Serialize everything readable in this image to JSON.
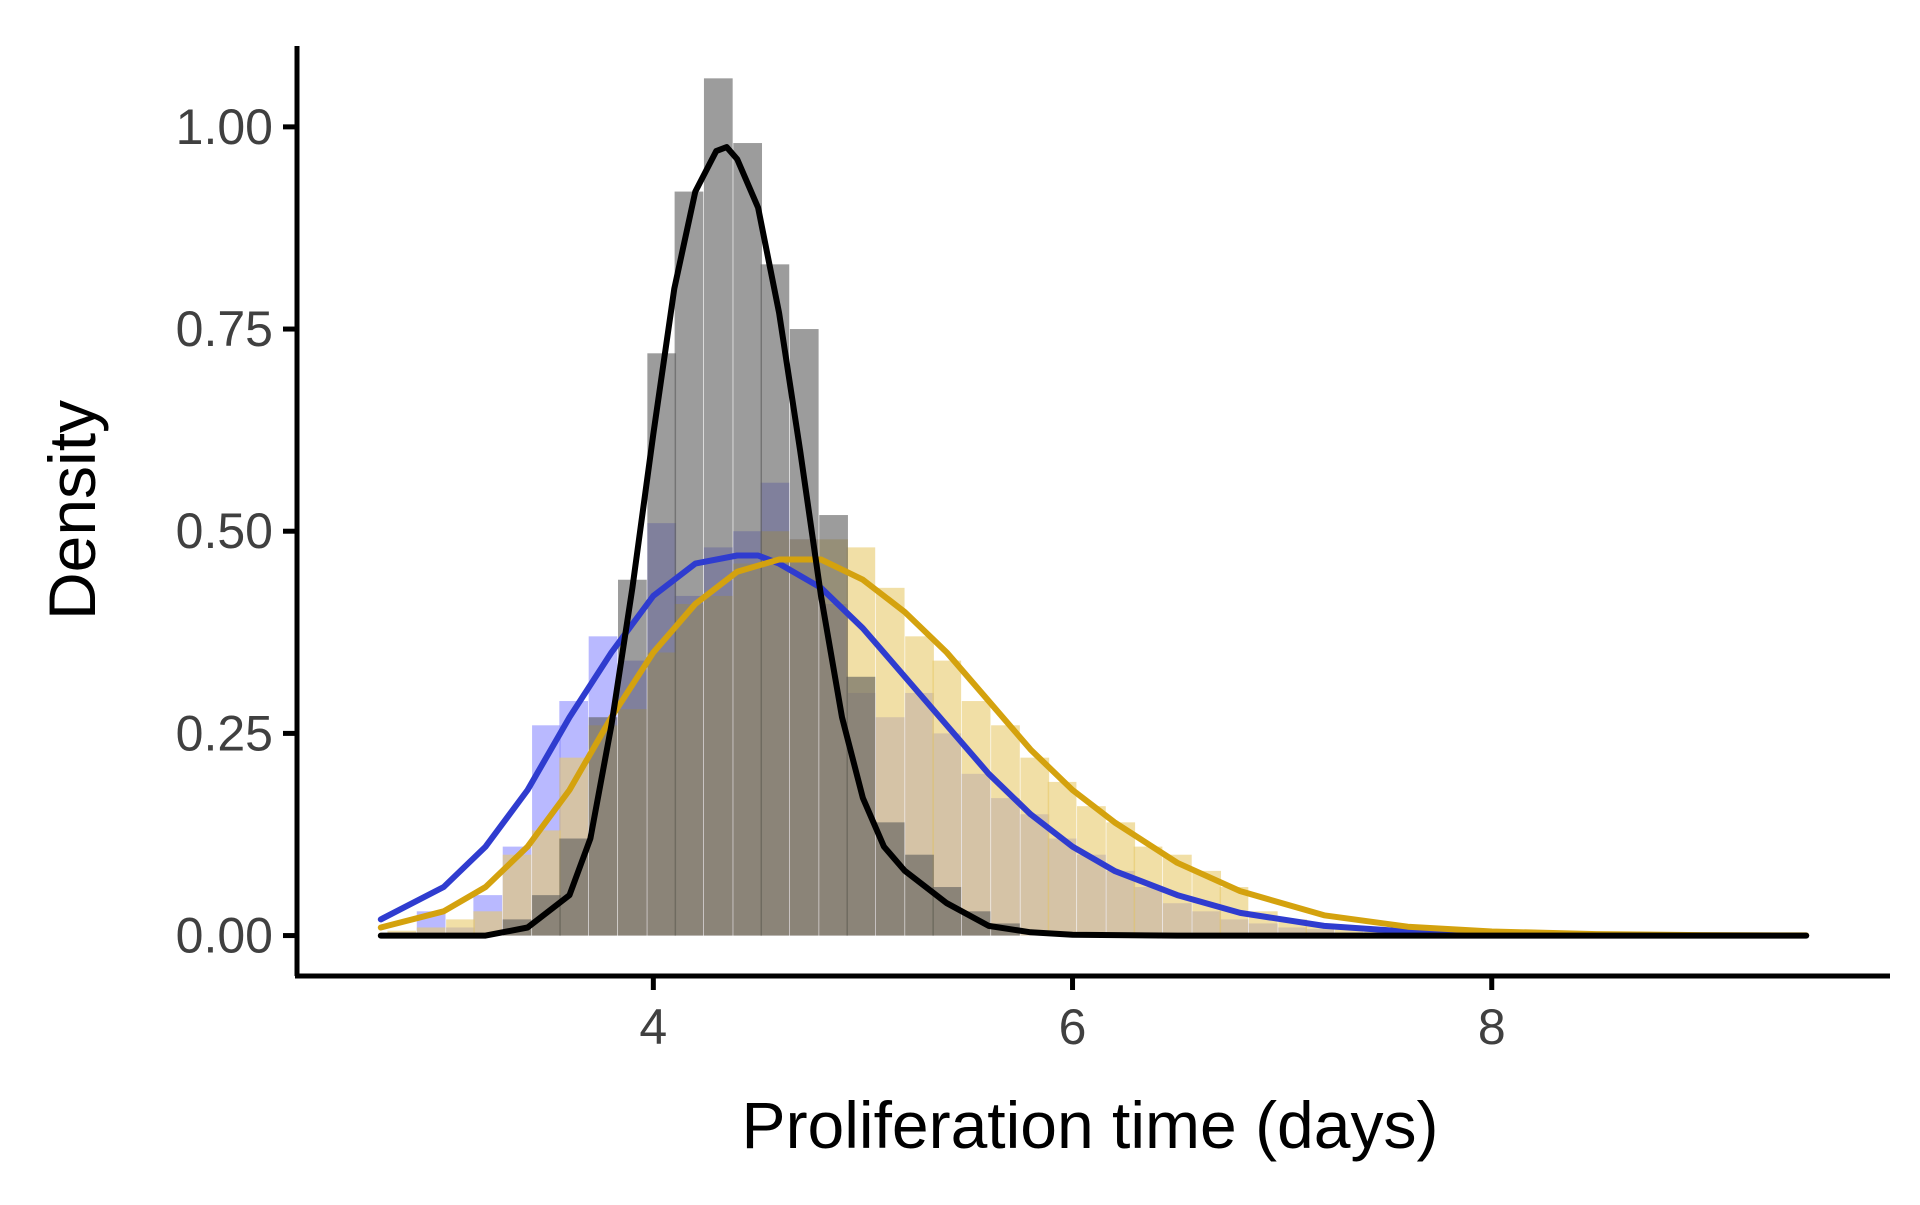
{
  "chart_data": {
    "type": "histogram",
    "title": "",
    "xlabel": "Proliferation time (days)",
    "ylabel": "Density",
    "xlim": [
      2.3,
      9.9
    ],
    "ylim": [
      -0.05,
      1.1
    ],
    "x_ticks": [
      4,
      6,
      8
    ],
    "x_tick_labels": [
      "4",
      "6",
      "8"
    ],
    "y_ticks": [
      0.0,
      0.25,
      0.5,
      0.75,
      1.0
    ],
    "y_tick_labels": [
      "0.00",
      "0.25",
      "0.50",
      "0.75",
      "1.00"
    ],
    "grid": false,
    "legend": "none",
    "bin_width": 0.137,
    "series": [
      {
        "kind": "histogram",
        "color": "#8a8aff",
        "opacity": 0.6,
        "bins": [
          {
            "x": 2.67,
            "y": 0.0
          },
          {
            "x": 2.8,
            "y": 0.004
          },
          {
            "x": 2.94,
            "y": 0.03
          },
          {
            "x": 3.08,
            "y": 0.01
          },
          {
            "x": 3.21,
            "y": 0.05
          },
          {
            "x": 3.35,
            "y": 0.11
          },
          {
            "x": 3.49,
            "y": 0.26
          },
          {
            "x": 3.62,
            "y": 0.29
          },
          {
            "x": 3.76,
            "y": 0.37
          },
          {
            "x": 3.9,
            "y": 0.34
          },
          {
            "x": 4.04,
            "y": 0.51
          },
          {
            "x": 4.17,
            "y": 0.42
          },
          {
            "x": 4.31,
            "y": 0.48
          },
          {
            "x": 4.45,
            "y": 0.5
          },
          {
            "x": 4.58,
            "y": 0.56
          },
          {
            "x": 4.72,
            "y": 0.49
          },
          {
            "x": 4.86,
            "y": 0.41
          },
          {
            "x": 4.99,
            "y": 0.3
          },
          {
            "x": 5.13,
            "y": 0.27
          },
          {
            "x": 5.27,
            "y": 0.3
          },
          {
            "x": 5.4,
            "y": 0.25
          },
          {
            "x": 5.54,
            "y": 0.2
          },
          {
            "x": 5.68,
            "y": 0.17
          },
          {
            "x": 5.82,
            "y": 0.15
          },
          {
            "x": 5.95,
            "y": 0.12
          },
          {
            "x": 6.09,
            "y": 0.1
          },
          {
            "x": 6.23,
            "y": 0.08
          },
          {
            "x": 6.36,
            "y": 0.06
          },
          {
            "x": 6.5,
            "y": 0.04
          },
          {
            "x": 6.64,
            "y": 0.03
          },
          {
            "x": 6.77,
            "y": 0.02
          },
          {
            "x": 6.91,
            "y": 0.015
          },
          {
            "x": 7.05,
            "y": 0.01
          },
          {
            "x": 7.18,
            "y": 0.008
          }
        ]
      },
      {
        "kind": "histogram",
        "color": "#e8c96a",
        "opacity": 0.6,
        "bins": [
          {
            "x": 2.8,
            "y": 0.006
          },
          {
            "x": 2.94,
            "y": 0.01
          },
          {
            "x": 3.08,
            "y": 0.02
          },
          {
            "x": 3.21,
            "y": 0.03
          },
          {
            "x": 3.35,
            "y": 0.1
          },
          {
            "x": 3.49,
            "y": 0.13
          },
          {
            "x": 3.62,
            "y": 0.22
          },
          {
            "x": 3.76,
            "y": 0.26
          },
          {
            "x": 3.9,
            "y": 0.28
          },
          {
            "x": 4.04,
            "y": 0.35
          },
          {
            "x": 4.17,
            "y": 0.41
          },
          {
            "x": 4.31,
            "y": 0.42
          },
          {
            "x": 4.45,
            "y": 0.46
          },
          {
            "x": 4.58,
            "y": 0.5
          },
          {
            "x": 4.72,
            "y": 0.49
          },
          {
            "x": 4.86,
            "y": 0.49
          },
          {
            "x": 4.99,
            "y": 0.48
          },
          {
            "x": 5.13,
            "y": 0.43
          },
          {
            "x": 5.27,
            "y": 0.37
          },
          {
            "x": 5.4,
            "y": 0.34
          },
          {
            "x": 5.54,
            "y": 0.29
          },
          {
            "x": 5.68,
            "y": 0.26
          },
          {
            "x": 5.82,
            "y": 0.22
          },
          {
            "x": 5.95,
            "y": 0.19
          },
          {
            "x": 6.09,
            "y": 0.16
          },
          {
            "x": 6.23,
            "y": 0.14
          },
          {
            "x": 6.36,
            "y": 0.11
          },
          {
            "x": 6.5,
            "y": 0.1
          },
          {
            "x": 6.64,
            "y": 0.08
          },
          {
            "x": 6.77,
            "y": 0.06
          },
          {
            "x": 6.91,
            "y": 0.03
          },
          {
            "x": 7.05,
            "y": 0.02
          },
          {
            "x": 7.18,
            "y": 0.015
          },
          {
            "x": 7.32,
            "y": 0.01
          },
          {
            "x": 7.46,
            "y": 0.008
          },
          {
            "x": 7.6,
            "y": 0.005
          }
        ]
      },
      {
        "kind": "histogram",
        "color": "#5a5a5a",
        "opacity": 0.6,
        "bins": [
          {
            "x": 3.35,
            "y": 0.02
          },
          {
            "x": 3.49,
            "y": 0.05
          },
          {
            "x": 3.62,
            "y": 0.12
          },
          {
            "x": 3.76,
            "y": 0.27
          },
          {
            "x": 3.9,
            "y": 0.44
          },
          {
            "x": 4.04,
            "y": 0.72
          },
          {
            "x": 4.17,
            "y": 0.92
          },
          {
            "x": 4.31,
            "y": 1.06
          },
          {
            "x": 4.45,
            "y": 0.98
          },
          {
            "x": 4.58,
            "y": 0.83
          },
          {
            "x": 4.72,
            "y": 0.75
          },
          {
            "x": 4.86,
            "y": 0.52
          },
          {
            "x": 4.99,
            "y": 0.32
          },
          {
            "x": 5.13,
            "y": 0.14
          },
          {
            "x": 5.27,
            "y": 0.1
          },
          {
            "x": 5.4,
            "y": 0.06
          },
          {
            "x": 5.54,
            "y": 0.03
          },
          {
            "x": 5.68,
            "y": 0.015
          }
        ]
      },
      {
        "kind": "curve",
        "color": "#2f3ccf",
        "x": [
          2.7,
          3.0,
          3.2,
          3.4,
          3.6,
          3.8,
          4.0,
          4.2,
          4.4,
          4.5,
          4.6,
          4.8,
          5.0,
          5.2,
          5.4,
          5.6,
          5.8,
          6.0,
          6.2,
          6.5,
          6.8,
          7.2,
          7.6,
          8.0,
          8.5,
          9.0,
          9.5
        ],
        "y": [
          0.02,
          0.06,
          0.11,
          0.18,
          0.27,
          0.35,
          0.42,
          0.46,
          0.47,
          0.47,
          0.46,
          0.43,
          0.38,
          0.32,
          0.26,
          0.2,
          0.15,
          0.11,
          0.08,
          0.05,
          0.028,
          0.012,
          0.005,
          0.002,
          0.0007,
          0.0002,
          0.0001
        ]
      },
      {
        "kind": "curve",
        "color": "#d4a20e",
        "x": [
          2.7,
          3.0,
          3.2,
          3.4,
          3.6,
          3.8,
          4.0,
          4.2,
          4.4,
          4.6,
          4.8,
          5.0,
          5.2,
          5.4,
          5.6,
          5.8,
          6.0,
          6.2,
          6.5,
          6.8,
          7.2,
          7.6,
          8.0,
          8.5,
          9.0,
          9.5
        ],
        "y": [
          0.01,
          0.03,
          0.06,
          0.11,
          0.18,
          0.27,
          0.35,
          0.41,
          0.45,
          0.465,
          0.465,
          0.44,
          0.4,
          0.35,
          0.29,
          0.23,
          0.18,
          0.14,
          0.09,
          0.055,
          0.025,
          0.011,
          0.005,
          0.0018,
          0.0006,
          0.0002
        ]
      },
      {
        "kind": "curve",
        "color": "#000000",
        "x": [
          2.7,
          3.2,
          3.4,
          3.6,
          3.7,
          3.8,
          3.9,
          4.0,
          4.1,
          4.2,
          4.3,
          4.35,
          4.4,
          4.5,
          4.6,
          4.7,
          4.8,
          4.9,
          5.0,
          5.1,
          5.2,
          5.4,
          5.6,
          5.8,
          6.0,
          6.5,
          7.0,
          8.0,
          9.5
        ],
        "y": [
          0.0,
          0.0,
          0.01,
          0.05,
          0.12,
          0.26,
          0.43,
          0.62,
          0.8,
          0.92,
          0.97,
          0.975,
          0.96,
          0.9,
          0.77,
          0.6,
          0.42,
          0.27,
          0.17,
          0.11,
          0.08,
          0.04,
          0.012,
          0.004,
          0.001,
          0.0,
          0.0,
          0.0,
          0.0
        ]
      }
    ]
  }
}
